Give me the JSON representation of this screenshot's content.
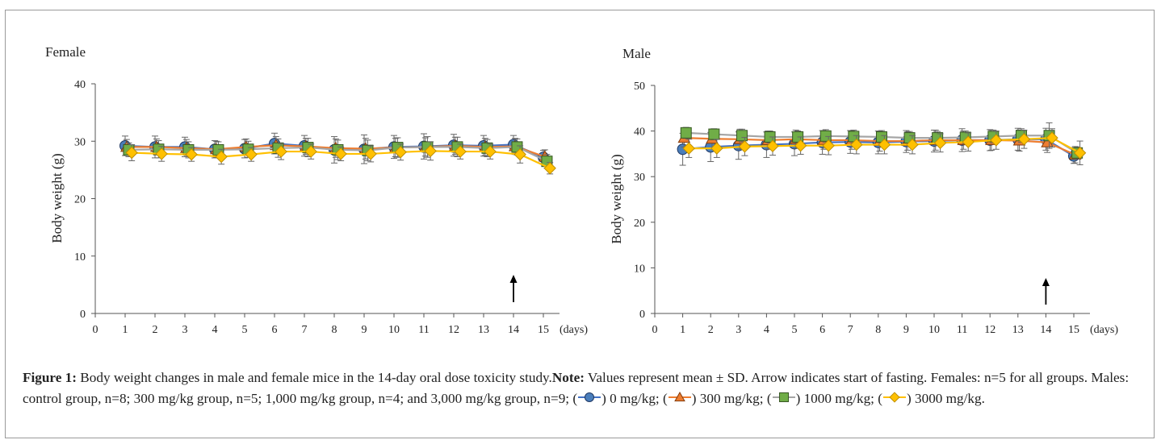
{
  "colors": {
    "series_0": "#4a7ebb",
    "series_300": "#ed7d31",
    "series_1000": "#70ad47",
    "series_3000": "#ffc000",
    "series_0_line": "#4472c4",
    "series_300_line": "#ed7d31",
    "series_1000_line": "#a5a5a5",
    "series_3000_line": "#ffc000",
    "border": "#9a9a9a"
  },
  "chart_data": [
    {
      "type": "line",
      "panel_title": "Female",
      "ylabel": "Body weight (g)",
      "x_unit_label": "(days)",
      "x": [
        1,
        2,
        3,
        4,
        5,
        6,
        7,
        8,
        9,
        10,
        11,
        12,
        13,
        14,
        15
      ],
      "xticks": [
        0,
        1,
        2,
        3,
        4,
        5,
        6,
        7,
        8,
        9,
        10,
        11,
        12,
        13,
        14,
        15
      ],
      "ylim": [
        0,
        40
      ],
      "yticks": [
        0,
        10,
        20,
        30,
        40
      ],
      "arrow_at_day": 14,
      "series": [
        {
          "name": "0 mg/kg",
          "marker": "circle",
          "values": [
            29.2,
            29.0,
            29.0,
            28.6,
            28.7,
            29.6,
            29.2,
            28.5,
            28.6,
            29.0,
            29.1,
            29.3,
            29.2,
            29.4,
            27.2
          ],
          "sd": [
            1.7,
            1.9,
            1.7,
            1.5,
            1.6,
            1.8,
            1.8,
            2.3,
            2.5,
            2.0,
            2.2,
            1.9,
            1.8,
            1.6,
            1.2
          ]
        },
        {
          "name": "300 mg/kg",
          "marker": "triangle",
          "values": [
            29.0,
            29.0,
            28.8,
            28.6,
            29.0,
            29.3,
            29.1,
            28.8,
            28.7,
            28.9,
            29.0,
            29.2,
            29.0,
            29.1,
            27.3
          ],
          "sd": [
            1.3,
            1.4,
            1.5,
            1.4,
            1.4,
            1.5,
            1.4,
            1.6,
            1.8,
            1.6,
            1.6,
            1.5,
            1.5,
            1.4,
            1.2
          ]
        },
        {
          "name": "1000 mg/kg",
          "marker": "square",
          "values": [
            28.5,
            28.6,
            28.5,
            28.5,
            28.6,
            28.8,
            28.9,
            28.5,
            28.4,
            28.9,
            29.0,
            29.0,
            28.8,
            29.0,
            26.5
          ],
          "sd": [
            1.2,
            1.5,
            1.4,
            1.4,
            1.4,
            1.6,
            1.6,
            1.7,
            1.8,
            1.7,
            1.8,
            1.7,
            1.5,
            1.4,
            1.2
          ]
        },
        {
          "name": "3000 mg/kg",
          "marker": "diamond",
          "values": [
            28.0,
            27.8,
            27.7,
            27.3,
            27.7,
            28.2,
            28.2,
            27.8,
            27.8,
            28.1,
            28.3,
            28.2,
            28.2,
            27.7,
            25.3
          ],
          "sd": [
            1.4,
            1.3,
            1.2,
            1.3,
            1.2,
            1.4,
            1.3,
            1.2,
            1.4,
            1.4,
            1.6,
            1.3,
            1.3,
            1.5,
            1.0
          ]
        }
      ]
    },
    {
      "type": "line",
      "panel_title": "Male",
      "ylabel": "Body weight (g)",
      "x_unit_label": "(days)",
      "x": [
        1,
        2,
        3,
        4,
        5,
        6,
        7,
        8,
        9,
        10,
        11,
        12,
        13,
        14,
        15
      ],
      "xticks": [
        0,
        1,
        2,
        3,
        4,
        5,
        6,
        7,
        8,
        9,
        10,
        11,
        12,
        13,
        14,
        15
      ],
      "ylim": [
        0,
        50
      ],
      "yticks": [
        0,
        10,
        20,
        30,
        40,
        50
      ],
      "arrow_at_day": 14,
      "series": [
        {
          "name": "0 mg/kg",
          "marker": "circle",
          "values": [
            36.0,
            36.5,
            36.8,
            37.0,
            37.2,
            37.5,
            37.6,
            37.5,
            37.7,
            37.8,
            38.0,
            38.0,
            38.2,
            38.2,
            34.5
          ],
          "sd": [
            3.5,
            3.2,
            3.0,
            2.8,
            2.6,
            2.6,
            2.5,
            2.5,
            2.4,
            2.4,
            2.5,
            2.3,
            2.4,
            2.4,
            1.6
          ]
        },
        {
          "name": "300 mg/kg",
          "marker": "triangle",
          "values": [
            38.5,
            38.3,
            38.2,
            38.0,
            38.2,
            38.0,
            38.0,
            37.8,
            37.8,
            38.0,
            38.0,
            38.0,
            37.9,
            37.5,
            34.8
          ],
          "sd": [
            2.0,
            2.0,
            2.2,
            2.0,
            2.0,
            2.0,
            2.0,
            2.2,
            2.0,
            2.2,
            2.0,
            2.2,
            2.3,
            2.2,
            1.8
          ]
        },
        {
          "name": "1000 mg/kg",
          "marker": "square",
          "values": [
            39.6,
            39.3,
            39.0,
            38.7,
            38.7,
            38.9,
            38.8,
            38.7,
            38.5,
            38.5,
            38.6,
            38.8,
            39.0,
            39.0,
            35.2
          ],
          "sd": [
            1.2,
            1.2,
            1.4,
            1.3,
            1.3,
            1.4,
            1.4,
            1.4,
            1.4,
            1.4,
            1.4,
            1.4,
            1.5,
            2.8,
            1.3
          ]
        },
        {
          "name": "3000 mg/kg",
          "marker": "diamond",
          "values": [
            36.2,
            36.2,
            36.6,
            36.7,
            36.8,
            36.8,
            37.0,
            37.0,
            37.0,
            37.4,
            37.6,
            38.0,
            38.2,
            38.5,
            35.2
          ],
          "sd": [
            2.0,
            2.0,
            2.0,
            2.0,
            1.9,
            2.0,
            2.0,
            2.0,
            2.0,
            2.0,
            2.0,
            2.0,
            2.0,
            2.0,
            2.6
          ]
        }
      ]
    }
  ],
  "caption": {
    "label": "Figure 1:",
    "text": " Body weight changes in male and female mice in the 14-day oral dose toxicity study.",
    "note_label": "Note:",
    "note_text": " Values represent mean ± SD. Arrow indicates start of fasting. Females: n=5 for all groups. Males: control group, n=8; 300 mg/kg group, n=5; 1,000 mg/kg group, n=4; and 3,000 mg/kg group, n=9; ",
    "legend": [
      {
        "text": ") 0 mg/kg; (",
        "marker": "circle"
      },
      {
        "text": ") 300 mg/kg; (",
        "marker": "triangle"
      },
      {
        "text": ") 1000 mg/kg; (",
        "marker": "square"
      },
      {
        "text": ") 3000 mg/kg.",
        "marker": "diamond"
      }
    ],
    "open_paren": "("
  }
}
